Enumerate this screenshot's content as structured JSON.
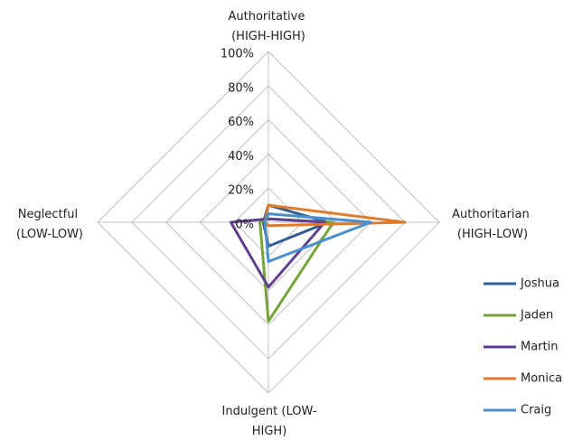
{
  "chart_data": {
    "type": "radar",
    "categories": [
      "Authoritative (HIGH-HIGH)",
      "Authoritarian (HIGH-LOW)",
      "Indulgent (LOW-HIGH)",
      "Neglectful (LOW-LOW)"
    ],
    "series": [
      {
        "name": "Joshua",
        "color": "#2f5d95",
        "values": [
          10,
          35,
          14,
          3
        ]
      },
      {
        "name": "Jaden",
        "color": "#77a33b",
        "values": [
          2,
          38,
          58,
          5
        ]
      },
      {
        "name": "Martin",
        "color": "#5f3f8f",
        "values": [
          2,
          33,
          38,
          22
        ]
      },
      {
        "name": "Monica",
        "color": "#e07b2a",
        "values": [
          10,
          80,
          2,
          2
        ]
      },
      {
        "name": "Craig",
        "color": "#4a8fd0",
        "values": [
          5,
          60,
          23,
          2
        ]
      }
    ],
    "ylim": [
      0,
      100
    ],
    "yticks": [
      {
        "value": 0,
        "label": "0%"
      },
      {
        "value": 20,
        "label": "20%"
      },
      {
        "value": 40,
        "label": "40%"
      },
      {
        "value": 60,
        "label": "60%"
      },
      {
        "value": 80,
        "label": "80%"
      },
      {
        "value": 100,
        "label": "100%"
      }
    ],
    "grid": true,
    "legend": "right"
  }
}
